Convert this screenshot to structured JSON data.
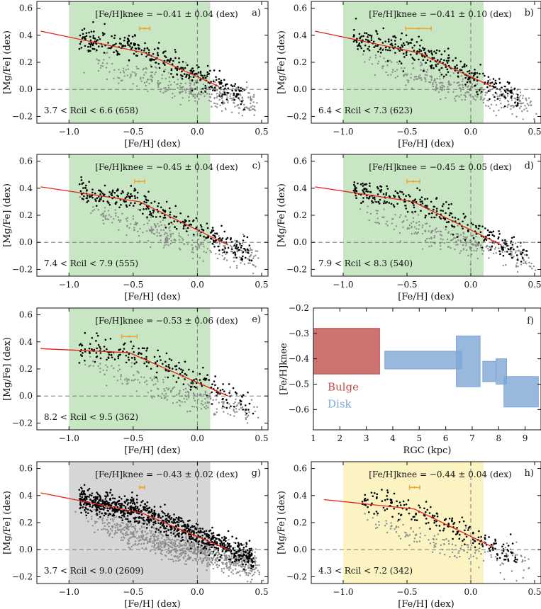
{
  "chart_data": [
    {
      "panel": "a)",
      "type": "scatter",
      "xlabel": "[Fe/H] (dex)",
      "ylabel": "[Mg/Fe] (dex)",
      "xlim": [
        -1.25,
        0.55
      ],
      "ylim": [
        -0.25,
        0.65
      ],
      "xticks": [
        "-1.0",
        "-0.5",
        "0.0",
        "0.5"
      ],
      "yticks": [
        "-0.2",
        "0.0",
        "0.2",
        "0.4",
        "0.6"
      ],
      "shade": {
        "x0": -1.0,
        "x1": 0.1,
        "color": "#c8e6c4"
      },
      "knee_label": "[Fe/H]knee = −0.41 ± 0.04 (dex)",
      "knee": -0.41,
      "knee_err": 0.04,
      "errbar_y": 0.45,
      "radius_label": "3.7 < Rcil < 6.6 (658)",
      "fit": [
        [
          -1.22,
          0.43
        ],
        [
          -0.41,
          0.27
        ],
        [
          0.17,
          0.02
        ]
      ],
      "n_alpha_rich": 330,
      "n_alpha_poor": 330
    },
    {
      "panel": "b)",
      "type": "scatter",
      "xlabel": "[Fe/H] (dex)",
      "ylabel": "[Mg/Fe] (dex)",
      "xlim": [
        -1.25,
        0.55
      ],
      "ylim": [
        -0.25,
        0.65
      ],
      "xticks": [
        "-1.0",
        "-0.5",
        "0.0",
        "0.5"
      ],
      "yticks": [
        "-0.2",
        "0.0",
        "0.2",
        "0.4",
        "0.6"
      ],
      "shade": {
        "x0": -1.0,
        "x1": 0.1,
        "color": "#c8e6c4"
      },
      "knee_label": "[Fe/H]knee = −0.41 ± 0.10 (dex)",
      "knee": -0.41,
      "knee_err": 0.1,
      "errbar_y": 0.45,
      "radius_label": "6.4 < Rcil < 7.3 (623)",
      "fit": [
        [
          -1.22,
          0.43
        ],
        [
          -0.41,
          0.27
        ],
        [
          0.17,
          0.02
        ]
      ],
      "n_alpha_rich": 320,
      "n_alpha_poor": 310
    },
    {
      "panel": "c)",
      "type": "scatter",
      "xlabel": "[Fe/H] (dex)",
      "ylabel": "[Mg/Fe] (dex)",
      "xlim": [
        -1.25,
        0.55
      ],
      "ylim": [
        -0.25,
        0.65
      ],
      "xticks": [
        "-1.0",
        "-0.5",
        "0.0",
        "0.5"
      ],
      "yticks": [
        "-0.2",
        "0.0",
        "0.2",
        "0.4",
        "0.6"
      ],
      "shade": {
        "x0": -1.0,
        "x1": 0.1,
        "color": "#c8e6c4"
      },
      "knee_label": "[Fe/H]knee = −0.45 ± 0.04 (dex)",
      "knee": -0.45,
      "knee_err": 0.04,
      "errbar_y": 0.45,
      "radius_label": "7.4 < Rcil < 7.9 (555)",
      "fit": [
        [
          -1.22,
          0.41
        ],
        [
          -0.45,
          0.3
        ],
        [
          0.24,
          -0.02
        ]
      ],
      "n_alpha_rich": 290,
      "n_alpha_poor": 280
    },
    {
      "panel": "d)",
      "type": "scatter",
      "xlabel": "[Fe/H] (dex)",
      "ylabel": "[Mg/Fe] (dex)",
      "xlim": [
        -1.25,
        0.55
      ],
      "ylim": [
        -0.25,
        0.65
      ],
      "xticks": [
        "-1.0",
        "-0.5",
        "0.0",
        "0.5"
      ],
      "yticks": [
        "-0.2",
        "0.0",
        "0.2",
        "0.4",
        "0.6"
      ],
      "shade": {
        "x0": -1.0,
        "x1": 0.1,
        "color": "#c8e6c4"
      },
      "knee_label": "[Fe/H]knee = −0.45 ± 0.05 (dex)",
      "knee": -0.45,
      "knee_err": 0.05,
      "errbar_y": 0.45,
      "radius_label": "7.9 < Rcil < 8.3 (540)",
      "fit": [
        [
          -1.22,
          0.41
        ],
        [
          -0.45,
          0.3
        ],
        [
          0.24,
          -0.02
        ]
      ],
      "n_alpha_rich": 280,
      "n_alpha_poor": 280
    },
    {
      "panel": "e)",
      "type": "scatter",
      "xlabel": "[Fe/H] (dex)",
      "ylabel": "[Mg/Fe] (dex)",
      "xlim": [
        -1.25,
        0.55
      ],
      "ylim": [
        -0.25,
        0.65
      ],
      "xticks": [
        "-1.0",
        "-0.5",
        "0.0",
        "0.5"
      ],
      "yticks": [
        "-0.2",
        "0.0",
        "0.2",
        "0.4",
        "0.6"
      ],
      "shade": {
        "x0": -1.0,
        "x1": 0.1,
        "color": "#c8e6c4"
      },
      "knee_label": "[Fe/H]knee = −0.53 ± 0.06 (dex)",
      "knee": -0.53,
      "knee_err": 0.06,
      "errbar_y": 0.44,
      "radius_label": "8.2 < Rcil < 9.5 (362)",
      "fit": [
        [
          -1.22,
          0.35
        ],
        [
          -0.53,
          0.32
        ],
        [
          0.24,
          0.0
        ]
      ],
      "n_alpha_rich": 220,
      "n_alpha_poor": 230
    },
    {
      "panel": "g)",
      "type": "scatter",
      "xlabel": "[Fe/H] (dex)",
      "ylabel": "[Mg/Fe] (dex)",
      "xlim": [
        -1.25,
        0.55
      ],
      "ylim": [
        -0.25,
        0.65
      ],
      "xticks": [
        "-1.0",
        "-0.5",
        "0.0",
        "0.5"
      ],
      "yticks": [
        "-0.2",
        "0.0",
        "0.2",
        "0.4",
        "0.6"
      ],
      "shade": {
        "x0": -1.0,
        "x1": 0.1,
        "color": "#d6d6d6"
      },
      "knee_label": "[Fe/H]knee = −0.43 ± 0.02 (dex)",
      "knee": -0.43,
      "knee_err": 0.02,
      "errbar_y": 0.46,
      "radius_label": "3.7 < Rcil < 9.0 (2609)",
      "fit": [
        [
          -1.22,
          0.42
        ],
        [
          -0.43,
          0.27
        ],
        [
          0.24,
          0.0
        ]
      ],
      "n_alpha_rich": 900,
      "n_alpha_poor": 900
    },
    {
      "panel": "h)",
      "type": "scatter",
      "xlabel": "[Fe/H] (dex)",
      "ylabel": "[Mg/Fe] (dex)",
      "xlim": [
        -1.25,
        0.55
      ],
      "ylim": [
        -0.25,
        0.65
      ],
      "xticks": [
        "-1.0",
        "-0.5",
        "0.0",
        "0.5"
      ],
      "yticks": [
        "-0.2",
        "0.0",
        "0.2",
        "0.4",
        "0.6"
      ],
      "shade": {
        "x0": -1.0,
        "x1": 0.1,
        "color": "#fbf3c2"
      },
      "knee_label": "[Fe/H]knee = −0.44 ± 0.04 (dex)",
      "knee": -0.44,
      "knee_err": 0.04,
      "errbar_y": 0.46,
      "radius_label": "4.3 < Rcil < 7.2 (342)",
      "fit": [
        [
          -1.15,
          0.37
        ],
        [
          -0.44,
          0.3
        ],
        [
          0.17,
          0.02
        ]
      ],
      "n_alpha_rich": 200,
      "n_alpha_poor": 150
    },
    {
      "panel": "f)",
      "type": "boxes",
      "xlabel": "RGC (kpc)",
      "ylabel": "[Fe/H]knee",
      "xlim": [
        1,
        9.6
      ],
      "ylim": [
        -0.68,
        -0.2
      ],
      "xticks": [
        "1",
        "2",
        "3",
        "4",
        "5",
        "6",
        "7",
        "8",
        "9"
      ],
      "yticks": [
        "-0.2",
        "-0.3",
        "-0.4",
        "-0.5",
        "-0.6"
      ],
      "legend": [
        {
          "label": "Bulge",
          "color": "#c0504d"
        },
        {
          "label": "Disk",
          "color": "#7ea6d6"
        }
      ],
      "boxes": [
        {
          "group": "Bulge",
          "r0": 1.0,
          "r1": 3.5,
          "lo": -0.46,
          "hi": -0.28
        },
        {
          "group": "Disk",
          "r0": 3.7,
          "r1": 6.6,
          "lo": -0.44,
          "hi": -0.37
        },
        {
          "group": "Disk",
          "r0": 6.4,
          "r1": 7.3,
          "lo": -0.51,
          "hi": -0.31
        },
        {
          "group": "Disk",
          "r0": 7.4,
          "r1": 7.9,
          "lo": -0.49,
          "hi": -0.41
        },
        {
          "group": "Disk",
          "r0": 7.9,
          "r1": 8.3,
          "lo": -0.5,
          "hi": -0.4
        },
        {
          "group": "Disk",
          "r0": 8.2,
          "r1": 9.5,
          "lo": -0.59,
          "hi": -0.47
        }
      ]
    }
  ]
}
